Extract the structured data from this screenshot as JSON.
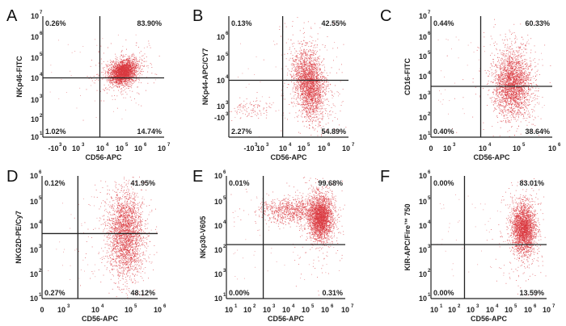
{
  "chart_data": [
    {
      "type": "scatter",
      "panel": "A",
      "xlabel": "CD56-APC",
      "ylabel": "NKp46-FITC",
      "x_ticks": [
        {
          "base": "-10",
          "exp": "3"
        },
        {
          "base": "0",
          "exp": ""
        },
        {
          "base": "10",
          "exp": "3"
        },
        {
          "base": "10",
          "exp": "4"
        },
        {
          "base": "10",
          "exp": "5"
        },
        {
          "base": "10",
          "exp": "6"
        },
        {
          "base": "10",
          "exp": "7"
        }
      ],
      "y_ticks": [
        {
          "base": "10",
          "exp": "1"
        },
        {
          "base": "10",
          "exp": "2"
        },
        {
          "base": "10",
          "exp": "3"
        },
        {
          "base": "10",
          "exp": "4"
        },
        {
          "base": "10",
          "exp": "5"
        },
        {
          "base": "10",
          "exp": "6"
        },
        {
          "base": "10",
          "exp": "7"
        }
      ],
      "quadrants": {
        "upper_left": "0.26%",
        "upper_right": "83.90%",
        "lower_left": "1.02%",
        "lower_right": "14.74%"
      },
      "gate": {
        "x_frac": 0.47,
        "y_frac": 0.49
      },
      "population": {
        "cx": 0.66,
        "cy": 0.54,
        "sx": 0.06,
        "sy": 0.045,
        "rot": 0.55
      }
    },
    {
      "type": "scatter",
      "panel": "B",
      "xlabel": "CD56-APC",
      "ylabel": "NKp44-APC/CY7",
      "x_ticks": [
        {
          "base": "-10",
          "exp": "3"
        },
        {
          "base": "10",
          "exp": "3"
        },
        {
          "base": "10",
          "exp": "4"
        },
        {
          "base": "10",
          "exp": "5"
        },
        {
          "base": "10",
          "exp": "6"
        },
        {
          "base": "10",
          "exp": "7"
        }
      ],
      "y_ticks": [
        {
          "base": "-10",
          "exp": "3"
        },
        {
          "base": "10",
          "exp": "3"
        },
        {
          "base": "10",
          "exp": "4"
        },
        {
          "base": "10",
          "exp": "5"
        },
        {
          "base": "10",
          "exp": "6"
        }
      ],
      "quadrants": {
        "upper_left": "0.13%",
        "upper_right": "42.55%",
        "lower_left": "2.27%",
        "lower_right": "54.89%"
      },
      "gate": {
        "x_frac": 0.45,
        "y_frac": 0.47
      },
      "population": {
        "cx": 0.67,
        "cy": 0.44,
        "sx": 0.06,
        "sy": 0.14,
        "rot": 0.15
      }
    },
    {
      "type": "scatter",
      "panel": "C",
      "xlabel": "CD56-APC",
      "ylabel": "CD16-FITC",
      "x_ticks": [
        {
          "base": "0",
          "exp": ""
        },
        {
          "base": "10",
          "exp": "3"
        },
        {
          "base": "10",
          "exp": "4"
        },
        {
          "base": "10",
          "exp": "5"
        },
        {
          "base": "10",
          "exp": "6"
        }
      ],
      "y_ticks": [
        {
          "base": "10",
          "exp": "1"
        },
        {
          "base": "10",
          "exp": "2"
        },
        {
          "base": "10",
          "exp": "3"
        },
        {
          "base": "10",
          "exp": "4"
        },
        {
          "base": "10",
          "exp": "5"
        },
        {
          "base": "10",
          "exp": "6"
        },
        {
          "base": "10",
          "exp": "7"
        }
      ],
      "quadrants": {
        "upper_left": "0.44%",
        "upper_right": "60.33%",
        "lower_left": "0.40%",
        "lower_right": "38.64%"
      },
      "gate": {
        "x_frac": 0.41,
        "y_frac": 0.42
      },
      "population": {
        "cx": 0.67,
        "cy": 0.44,
        "sx": 0.075,
        "sy": 0.13,
        "rot": 0.0
      }
    },
    {
      "type": "scatter",
      "panel": "D",
      "xlabel": "CD56-APC",
      "ylabel": "NKG2D-PE/Cy7",
      "x_ticks": [
        {
          "base": "0",
          "exp": ""
        },
        {
          "base": "10",
          "exp": "3"
        },
        {
          "base": "10",
          "exp": "4"
        },
        {
          "base": "10",
          "exp": "5"
        },
        {
          "base": "10",
          "exp": "6"
        }
      ],
      "y_ticks": [
        {
          "base": "10",
          "exp": "1"
        },
        {
          "base": "10",
          "exp": "2"
        },
        {
          "base": "10",
          "exp": "3"
        },
        {
          "base": "10",
          "exp": "4"
        },
        {
          "base": "10",
          "exp": "5"
        },
        {
          "base": "10",
          "exp": "6"
        }
      ],
      "quadrants": {
        "upper_left": "0.12%",
        "upper_right": "41.95%",
        "lower_left": "0.27%",
        "lower_right": "48.12%"
      },
      "gate": {
        "x_frac": 0.31,
        "y_frac": 0.53
      },
      "population": {
        "cx": 0.72,
        "cy": 0.53,
        "sx": 0.075,
        "sy": 0.17,
        "rot": 0.0
      }
    },
    {
      "type": "scatter",
      "panel": "E",
      "xlabel": "CD56-APC",
      "ylabel": "NKp30-V605",
      "x_ticks": [
        {
          "base": "10",
          "exp": "1"
        },
        {
          "base": "10",
          "exp": "2"
        },
        {
          "base": "10",
          "exp": "3"
        },
        {
          "base": "10",
          "exp": "4"
        },
        {
          "base": "10",
          "exp": "5"
        },
        {
          "base": "10",
          "exp": "6"
        },
        {
          "base": "10",
          "exp": "7"
        }
      ],
      "y_ticks": [
        {
          "base": "10",
          "exp": "1"
        },
        {
          "base": "10",
          "exp": "3"
        },
        {
          "base": "10",
          "exp": "2"
        },
        {
          "base": "10",
          "exp": "4"
        },
        {
          "base": "10",
          "exp": "5"
        },
        {
          "base": "10",
          "exp": "6"
        }
      ],
      "y_ticks_order_note": "",
      "quadrants": {
        "upper_left": "0.01%",
        "upper_right": "99.68%",
        "lower_left": "0.00%",
        "lower_right": "0.31%"
      },
      "gate": {
        "x_frac": 0.31,
        "y_frac": 0.44
      },
      "population": {
        "cx": 0.79,
        "cy": 0.66,
        "sx": 0.05,
        "sy": 0.09,
        "rot": 0.0
      },
      "secondary_population": {
        "cx": 0.55,
        "cy": 0.72,
        "sx": 0.13,
        "sy": 0.05,
        "rot": 0.0
      }
    },
    {
      "type": "scatter",
      "panel": "F",
      "xlabel": "CD56-APC",
      "ylabel": "KIR-APC/Fire™ 750",
      "x_ticks": [
        {
          "base": "10",
          "exp": "1"
        },
        {
          "base": "10",
          "exp": "2"
        },
        {
          "base": "10",
          "exp": "3"
        },
        {
          "base": "10",
          "exp": "4"
        },
        {
          "base": "10",
          "exp": "5"
        },
        {
          "base": "10",
          "exp": "6"
        },
        {
          "base": "10",
          "exp": "7"
        }
      ],
      "y_ticks": [
        {
          "base": "10",
          "exp": "1"
        },
        {
          "base": "10",
          "exp": "2"
        },
        {
          "base": "10",
          "exp": "3"
        },
        {
          "base": "10",
          "exp": "4"
        },
        {
          "base": "10",
          "exp": "5"
        },
        {
          "base": "10",
          "exp": "6"
        }
      ],
      "quadrants": {
        "upper_left": "0.00%",
        "upper_right": "83.01%",
        "lower_left": "0.00%",
        "lower_right": "13.59%"
      },
      "gate": {
        "x_frac": 0.29,
        "y_frac": 0.44
      },
      "population": {
        "cx": 0.8,
        "cy": 0.57,
        "sx": 0.05,
        "sy": 0.1,
        "rot": 0.0
      }
    }
  ],
  "style": {
    "dot_color": "#d9383f",
    "line_color": "#222222"
  }
}
